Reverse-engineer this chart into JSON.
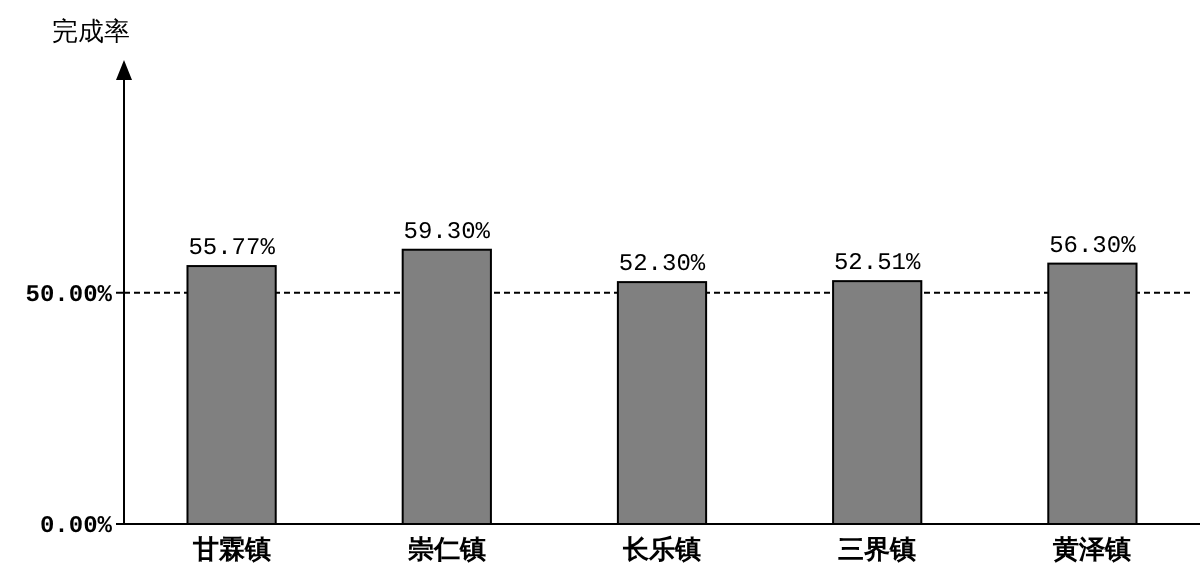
{
  "chart_data": {
    "type": "bar",
    "ylabel": "完成率",
    "categories": [
      "甘霖镇",
      "崇仁镇",
      "长乐镇",
      "三界镇",
      "黄泽镇"
    ],
    "values": [
      55.77,
      59.3,
      52.3,
      52.51,
      56.3
    ],
    "value_labels": [
      "55.77%",
      "59.30%",
      "52.30%",
      "52.51%",
      "56.30%"
    ],
    "color": "#808080",
    "ylim": [
      0,
      96
    ],
    "yticks": [
      {
        "value": 0,
        "label": "0.00%"
      },
      {
        "value": 50,
        "label": "50.00%"
      }
    ],
    "ref_lines": [
      {
        "axis": "y",
        "value": 50,
        "line_style": "dashed",
        "color": "#000000"
      }
    ],
    "grid": false
  }
}
